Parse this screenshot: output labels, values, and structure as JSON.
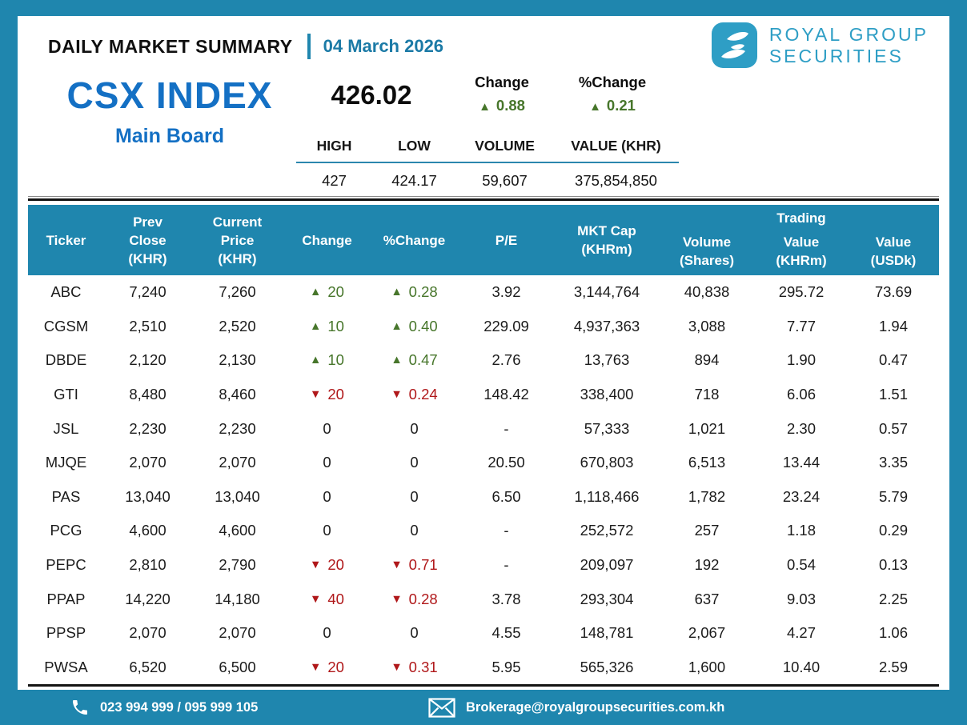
{
  "header": {
    "title": "DAILY MARKET SUMMARY",
    "date": "04 March 2026",
    "brand_line1": "ROYAL GROUP",
    "brand_line2": "SECURITIES"
  },
  "index": {
    "name": "CSX INDEX",
    "board": "Main Board",
    "value": "426.02",
    "change_label": "Change",
    "change": {
      "dir": "up",
      "icon": "▲",
      "value": "0.88"
    },
    "pct_change_label": "%Change",
    "pct_change": {
      "dir": "up",
      "icon": "▲",
      "value": "0.21"
    },
    "stats": {
      "headers": [
        "HIGH",
        "LOW",
        "VOLUME",
        "VALUE (KHR)"
      ],
      "values": [
        "427",
        "424.17",
        "59,607",
        "375,854,850"
      ]
    }
  },
  "table": {
    "columns": [
      {
        "id": "ticker",
        "lines": [
          "Ticker"
        ],
        "align": "center"
      },
      {
        "id": "prev_close",
        "lines": [
          "Prev",
          "Close",
          "(KHR)"
        ],
        "align": "center"
      },
      {
        "id": "current_price",
        "lines": [
          "Current",
          "Price",
          "(KHR)"
        ],
        "align": "center"
      },
      {
        "id": "change",
        "lines": [
          "Change"
        ],
        "align": "center"
      },
      {
        "id": "pct_change",
        "lines": [
          "%Change"
        ],
        "align": "center"
      },
      {
        "id": "pe",
        "lines": [
          "P/E"
        ],
        "align": "center"
      },
      {
        "id": "mkt_cap",
        "lines": [
          "MKT Cap",
          "(KHRm)"
        ],
        "align": "center"
      },
      {
        "id": "volume",
        "lines": [
          "Volume",
          "(Shares)"
        ],
        "align": "low"
      },
      {
        "id": "trading_value_khrm",
        "lines": [
          "Trading",
          "Value",
          "(KHRm)"
        ],
        "align": "trading"
      },
      {
        "id": "value_usdk",
        "lines": [
          "Value",
          "(USDk)"
        ],
        "align": "low"
      }
    ],
    "rows": [
      {
        "ticker": "ABC",
        "prev_close": "7,240",
        "current_price": "7,260",
        "change": {
          "dir": "up",
          "icon": "▲",
          "value": "20"
        },
        "pct_change": {
          "dir": "up",
          "icon": "▲",
          "value": "0.28"
        },
        "pe": "3.92",
        "mkt_cap": "3,144,764",
        "volume": "40,838",
        "trading_value_khrm": "295.72",
        "value_usdk": "73.69"
      },
      {
        "ticker": "CGSM",
        "prev_close": "2,510",
        "current_price": "2,520",
        "change": {
          "dir": "up",
          "icon": "▲",
          "value": "10"
        },
        "pct_change": {
          "dir": "up",
          "icon": "▲",
          "value": "0.40"
        },
        "pe": "229.09",
        "mkt_cap": "4,937,363",
        "volume": "3,088",
        "trading_value_khrm": "7.77",
        "value_usdk": "1.94"
      },
      {
        "ticker": "DBDE",
        "prev_close": "2,120",
        "current_price": "2,130",
        "change": {
          "dir": "up",
          "icon": "▲",
          "value": "10"
        },
        "pct_change": {
          "dir": "up",
          "icon": "▲",
          "value": "0.47"
        },
        "pe": "2.76",
        "mkt_cap": "13,763",
        "volume": "894",
        "trading_value_khrm": "1.90",
        "value_usdk": "0.47"
      },
      {
        "ticker": "GTI",
        "prev_close": "8,480",
        "current_price": "8,460",
        "change": {
          "dir": "down",
          "icon": "▼",
          "value": "20"
        },
        "pct_change": {
          "dir": "down",
          "icon": "▼",
          "value": "0.24"
        },
        "pe": "148.42",
        "mkt_cap": "338,400",
        "volume": "718",
        "trading_value_khrm": "6.06",
        "value_usdk": "1.51"
      },
      {
        "ticker": "JSL",
        "prev_close": "2,230",
        "current_price": "2,230",
        "change": {
          "dir": "flat",
          "icon": "",
          "value": "0"
        },
        "pct_change": {
          "dir": "flat",
          "icon": "",
          "value": "0"
        },
        "pe": "-",
        "mkt_cap": "57,333",
        "volume": "1,021",
        "trading_value_khrm": "2.30",
        "value_usdk": "0.57"
      },
      {
        "ticker": "MJQE",
        "prev_close": "2,070",
        "current_price": "2,070",
        "change": {
          "dir": "flat",
          "icon": "",
          "value": "0"
        },
        "pct_change": {
          "dir": "flat",
          "icon": "",
          "value": "0"
        },
        "pe": "20.50",
        "mkt_cap": "670,803",
        "volume": "6,513",
        "trading_value_khrm": "13.44",
        "value_usdk": "3.35"
      },
      {
        "ticker": "PAS",
        "prev_close": "13,040",
        "current_price": "13,040",
        "change": {
          "dir": "flat",
          "icon": "",
          "value": "0"
        },
        "pct_change": {
          "dir": "flat",
          "icon": "",
          "value": "0"
        },
        "pe": "6.50",
        "mkt_cap": "1,118,466",
        "volume": "1,782",
        "trading_value_khrm": "23.24",
        "value_usdk": "5.79"
      },
      {
        "ticker": "PCG",
        "prev_close": "4,600",
        "current_price": "4,600",
        "change": {
          "dir": "flat",
          "icon": "",
          "value": "0"
        },
        "pct_change": {
          "dir": "flat",
          "icon": "",
          "value": "0"
        },
        "pe": "-",
        "mkt_cap": "252,572",
        "volume": "257",
        "trading_value_khrm": "1.18",
        "value_usdk": "0.29"
      },
      {
        "ticker": "PEPC",
        "prev_close": "2,810",
        "current_price": "2,790",
        "change": {
          "dir": "down",
          "icon": "▼",
          "value": "20"
        },
        "pct_change": {
          "dir": "down",
          "icon": "▼",
          "value": "0.71"
        },
        "pe": "-",
        "mkt_cap": "209,097",
        "volume": "192",
        "trading_value_khrm": "0.54",
        "value_usdk": "0.13"
      },
      {
        "ticker": "PPAP",
        "prev_close": "14,220",
        "current_price": "14,180",
        "change": {
          "dir": "down",
          "icon": "▼",
          "value": "40"
        },
        "pct_change": {
          "dir": "down",
          "icon": "▼",
          "value": "0.28"
        },
        "pe": "3.78",
        "mkt_cap": "293,304",
        "volume": "637",
        "trading_value_khrm": "9.03",
        "value_usdk": "2.25"
      },
      {
        "ticker": "PPSP",
        "prev_close": "2,070",
        "current_price": "2,070",
        "change": {
          "dir": "flat",
          "icon": "",
          "value": "0"
        },
        "pct_change": {
          "dir": "flat",
          "icon": "",
          "value": "0"
        },
        "pe": "4.55",
        "mkt_cap": "148,781",
        "volume": "2,067",
        "trading_value_khrm": "4.27",
        "value_usdk": "1.06"
      },
      {
        "ticker": "PWSA",
        "prev_close": "6,520",
        "current_price": "6,500",
        "change": {
          "dir": "down",
          "icon": "▼",
          "value": "20"
        },
        "pct_change": {
          "dir": "down",
          "icon": "▼",
          "value": "0.31"
        },
        "pe": "5.95",
        "mkt_cap": "565,326",
        "volume": "1,600",
        "trading_value_khrm": "10.40",
        "value_usdk": "2.59"
      }
    ]
  },
  "footer": {
    "phone": "023 994 999 / 095 999 105",
    "email": "Brokerage@royalgroupsecurities.com.kh"
  },
  "colors": {
    "teal": "#1F86AE",
    "brand_teal": "#2E9EC5",
    "index_blue": "#1470C4",
    "up_green": "#47762B",
    "down_red": "#B0181A"
  }
}
